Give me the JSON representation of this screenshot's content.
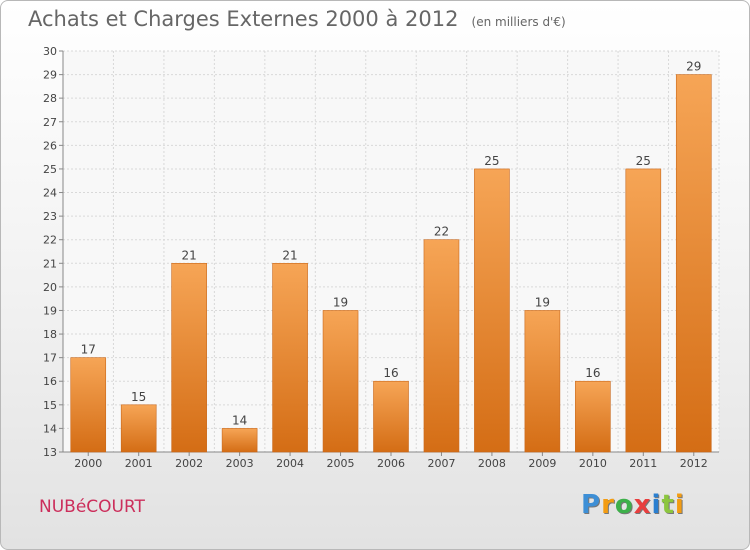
{
  "title": "Achats et Charges Externes 2000 à 2012",
  "unit_note": "(en milliers d'€)",
  "commune": "NUBéCOURT",
  "logo": {
    "letters": [
      "P",
      "r",
      "o",
      "x",
      "i",
      "t",
      "i"
    ],
    "colors": [
      "#3d8fd6",
      "#f39c12",
      "#3db04a",
      "#e83f3f",
      "#2a7fd0",
      "#8cc63f",
      "#f39c12"
    ]
  },
  "chart_data": {
    "type": "bar",
    "title": "Achats et Charges Externes 2000 à 2012",
    "subtitle": "(en milliers d'€)",
    "categories": [
      "2000",
      "2001",
      "2002",
      "2003",
      "2004",
      "2005",
      "2006",
      "2007",
      "2008",
      "2009",
      "2010",
      "2011",
      "2012"
    ],
    "values": [
      17,
      15,
      21,
      14,
      21,
      19,
      16,
      22,
      25,
      19,
      16,
      25,
      29
    ],
    "ylim": [
      13,
      30
    ],
    "yticks": [
      13,
      14,
      15,
      16,
      17,
      18,
      19,
      20,
      21,
      22,
      23,
      24,
      25,
      26,
      27,
      28,
      29,
      30
    ],
    "grid": true,
    "bar_color": "#f08a2c",
    "data_labels": true
  }
}
